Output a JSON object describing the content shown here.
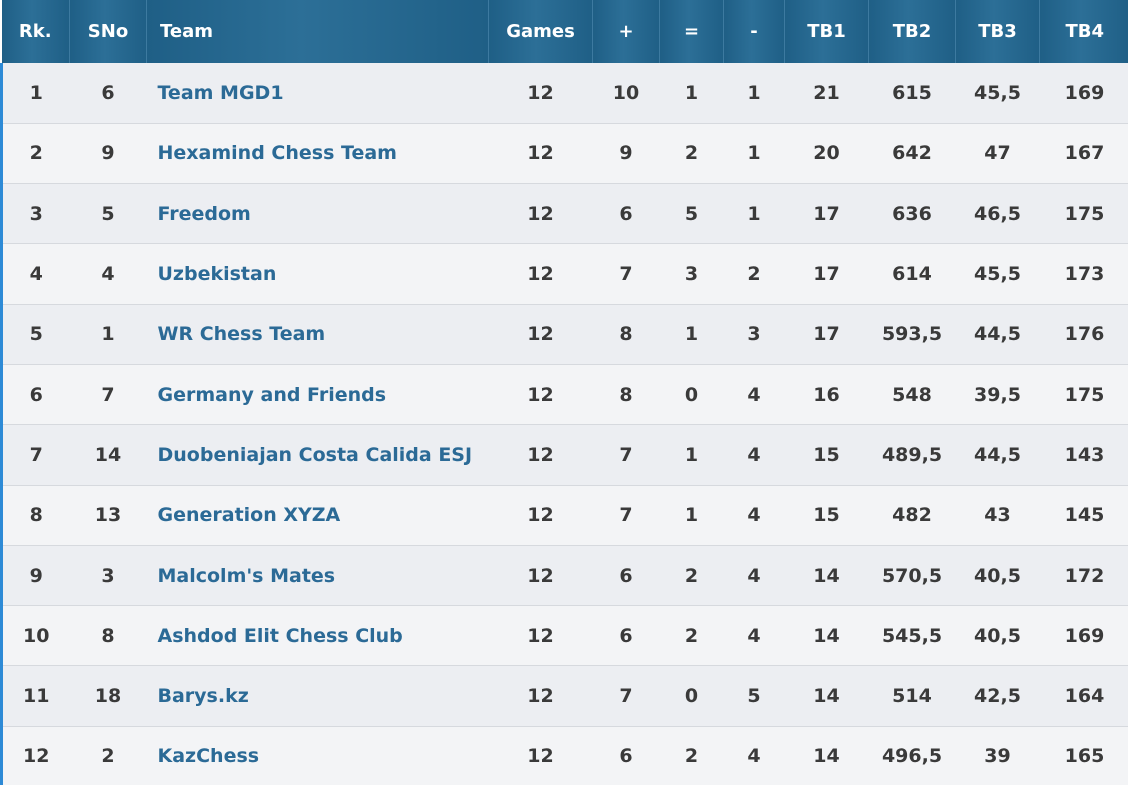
{
  "headers": {
    "rank": "Rk.",
    "sno": "SNo",
    "team": "Team",
    "games": "Games",
    "wins": "+",
    "draws": "=",
    "losses": "-",
    "tb1": "TB1",
    "tb2": "TB2",
    "tb3": "TB3",
    "tb4": "TB4"
  },
  "rows": [
    {
      "rank": "1",
      "sno": "6",
      "team": "Team MGD1",
      "games": "12",
      "wins": "10",
      "draws": "1",
      "losses": "1",
      "tb1": "21",
      "tb2": "615",
      "tb3": "45,5",
      "tb4": "169"
    },
    {
      "rank": "2",
      "sno": "9",
      "team": "Hexamind Chess Team",
      "games": "12",
      "wins": "9",
      "draws": "2",
      "losses": "1",
      "tb1": "20",
      "tb2": "642",
      "tb3": "47",
      "tb4": "167"
    },
    {
      "rank": "3",
      "sno": "5",
      "team": "Freedom",
      "games": "12",
      "wins": "6",
      "draws": "5",
      "losses": "1",
      "tb1": "17",
      "tb2": "636",
      "tb3": "46,5",
      "tb4": "175"
    },
    {
      "rank": "4",
      "sno": "4",
      "team": "Uzbekistan",
      "games": "12",
      "wins": "7",
      "draws": "3",
      "losses": "2",
      "tb1": "17",
      "tb2": "614",
      "tb3": "45,5",
      "tb4": "173"
    },
    {
      "rank": "5",
      "sno": "1",
      "team": "WR Chess Team",
      "games": "12",
      "wins": "8",
      "draws": "1",
      "losses": "3",
      "tb1": "17",
      "tb2": "593,5",
      "tb3": "44,5",
      "tb4": "176"
    },
    {
      "rank": "6",
      "sno": "7",
      "team": "Germany and Friends",
      "games": "12",
      "wins": "8",
      "draws": "0",
      "losses": "4",
      "tb1": "16",
      "tb2": "548",
      "tb3": "39,5",
      "tb4": "175"
    },
    {
      "rank": "7",
      "sno": "14",
      "team": "Duobeniajan Costa Calida ESJ",
      "games": "12",
      "wins": "7",
      "draws": "1",
      "losses": "4",
      "tb1": "15",
      "tb2": "489,5",
      "tb3": "44,5",
      "tb4": "143"
    },
    {
      "rank": "8",
      "sno": "13",
      "team": "Generation XYZA",
      "games": "12",
      "wins": "7",
      "draws": "1",
      "losses": "4",
      "tb1": "15",
      "tb2": "482",
      "tb3": "43",
      "tb4": "145"
    },
    {
      "rank": "9",
      "sno": "3",
      "team": "Malcolm's Mates",
      "games": "12",
      "wins": "6",
      "draws": "2",
      "losses": "4",
      "tb1": "14",
      "tb2": "570,5",
      "tb3": "40,5",
      "tb4": "172"
    },
    {
      "rank": "10",
      "sno": "8",
      "team": "Ashdod Elit Chess Club",
      "games": "12",
      "wins": "6",
      "draws": "2",
      "losses": "4",
      "tb1": "14",
      "tb2": "545,5",
      "tb3": "40,5",
      "tb4": "169"
    },
    {
      "rank": "11",
      "sno": "18",
      "team": "Barys.kz",
      "games": "12",
      "wins": "7",
      "draws": "0",
      "losses": "5",
      "tb1": "14",
      "tb2": "514",
      "tb3": "42,5",
      "tb4": "164"
    },
    {
      "rank": "12",
      "sno": "2",
      "team": "KazChess",
      "games": "12",
      "wins": "6",
      "draws": "2",
      "losses": "4",
      "tb1": "14",
      "tb2": "496,5",
      "tb3": "39",
      "tb4": "165"
    }
  ]
}
